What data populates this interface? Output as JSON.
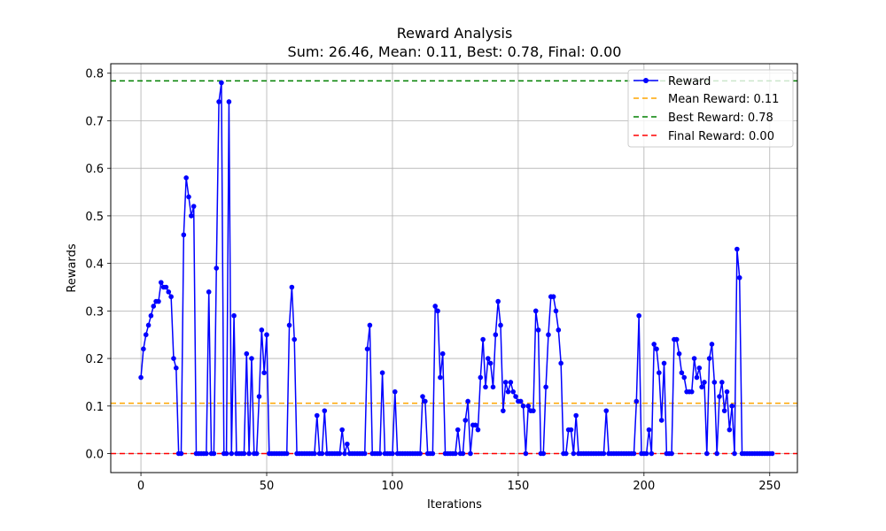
{
  "chart_data": {
    "type": "line",
    "title": "Reward Analysis",
    "subtitle": "Sum: 26.46, Mean: 0.11, Best: 0.78, Final: 0.00",
    "xlabel": "Iterations",
    "ylabel": "Rewards",
    "xlim": [
      -12,
      261
    ],
    "ylim": [
      -0.04,
      0.82
    ],
    "xticks": [
      0,
      50,
      100,
      150,
      200,
      250
    ],
    "yticks": [
      0.0,
      0.1,
      0.2,
      0.3,
      0.4,
      0.5,
      0.6,
      0.7,
      0.8
    ],
    "grid": true,
    "legend_position": "upper right",
    "series": [
      {
        "name": "Reward",
        "color": "#0000ff",
        "style": "line-marker",
        "values": [
          0.16,
          0.22,
          0.25,
          0.27,
          0.29,
          0.31,
          0.32,
          0.32,
          0.36,
          0.35,
          0.35,
          0.34,
          0.33,
          0.2,
          0.18,
          0.0,
          0.0,
          0.46,
          0.58,
          0.54,
          0.5,
          0.52,
          0.0,
          0.0,
          0.0,
          0.0,
          0.0,
          0.34,
          0.0,
          0.0,
          0.39,
          0.74,
          0.78,
          0.0,
          0.0,
          0.74,
          0.0,
          0.29,
          0.0,
          0.0,
          0.0,
          0.0,
          0.21,
          0.0,
          0.2,
          0.0,
          0.0,
          0.12,
          0.26,
          0.17,
          0.25,
          0.0,
          0.0,
          0.0,
          0.0,
          0.0,
          0.0,
          0.0,
          0.0,
          0.27,
          0.35,
          0.24,
          0.0,
          0.0,
          0.0,
          0.0,
          0.0,
          0.0,
          0.0,
          0.0,
          0.08,
          0.0,
          0.0,
          0.09,
          0.0,
          0.0,
          0.0,
          0.0,
          0.0,
          0.0,
          0.05,
          0.0,
          0.02,
          0.0,
          0.0,
          0.0,
          0.0,
          0.0,
          0.0,
          0.0,
          0.22,
          0.27,
          0.0,
          0.0,
          0.0,
          0.0,
          0.17,
          0.0,
          0.0,
          0.0,
          0.0,
          0.13,
          0.0,
          0.0,
          0.0,
          0.0,
          0.0,
          0.0,
          0.0,
          0.0,
          0.0,
          0.0,
          0.12,
          0.11,
          0.0,
          0.0,
          0.0,
          0.31,
          0.3,
          0.16,
          0.21,
          0.0,
          0.0,
          0.0,
          0.0,
          0.0,
          0.05,
          0.0,
          0.0,
          0.07,
          0.11,
          0.0,
          0.06,
          0.06,
          0.05,
          0.16,
          0.24,
          0.14,
          0.2,
          0.19,
          0.14,
          0.25,
          0.32,
          0.27,
          0.09,
          0.15,
          0.13,
          0.15,
          0.13,
          0.12,
          0.11,
          0.11,
          0.1,
          0.0,
          0.1,
          0.09,
          0.09,
          0.3,
          0.26,
          0.0,
          0.0,
          0.14,
          0.25,
          0.33,
          0.33,
          0.3,
          0.26,
          0.19,
          0.0,
          0.0,
          0.05,
          0.05,
          0.0,
          0.08,
          0.0,
          0.0,
          0.0,
          0.0,
          0.0,
          0.0,
          0.0,
          0.0,
          0.0,
          0.0,
          0.0,
          0.09,
          0.0,
          0.0,
          0.0,
          0.0,
          0.0,
          0.0,
          0.0,
          0.0,
          0.0,
          0.0,
          0.0,
          0.11,
          0.29,
          0.0,
          0.0,
          0.0,
          0.05,
          0.0,
          0.23,
          0.22,
          0.17,
          0.07,
          0.19,
          0.0,
          0.0,
          0.0,
          0.24,
          0.24,
          0.21,
          0.17,
          0.16,
          0.13,
          0.13,
          0.13,
          0.2,
          0.16,
          0.18,
          0.14,
          0.15,
          0.0,
          0.2,
          0.23,
          0.15,
          0.0,
          0.12,
          0.15,
          0.09,
          0.13,
          0.05,
          0.1,
          0.0,
          0.43,
          0.37,
          0.0,
          0.0,
          0.0,
          0.0,
          0.0,
          0.0,
          0.0,
          0.0,
          0.0,
          0.0,
          0.0,
          0.0,
          0.0
        ]
      },
      {
        "name": "Mean Reward: 0.11",
        "color": "#ffa500",
        "style": "dashed-hline",
        "value": 0.106
      },
      {
        "name": "Best Reward: 0.78",
        "color": "#008000",
        "style": "dashed-hline",
        "value": 0.784
      },
      {
        "name": "Final Reward: 0.00",
        "color": "#ff0000",
        "style": "dashed-hline",
        "value": 0.0
      }
    ]
  }
}
